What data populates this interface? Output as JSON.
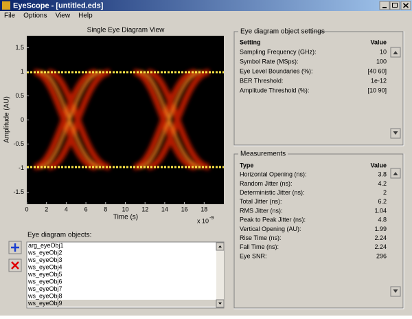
{
  "window": {
    "title": "EyeScope - [untitled.eds]"
  },
  "menu": [
    "File",
    "Options",
    "View",
    "Help"
  ],
  "plot": {
    "title": "Single Eye Diagram View",
    "xlabel": "Time (s)",
    "ylabel": "Amplitude (AU)",
    "x_multiplier": "x 10",
    "x_exponent": "-9",
    "xlim": [
      0,
      20
    ],
    "ylim": [
      -1.75,
      1.75
    ],
    "xticks": [
      0,
      2,
      4,
      6,
      8,
      10,
      12,
      14,
      16,
      18
    ],
    "yticks": [
      -1.5,
      -1,
      -0.5,
      0,
      0.5,
      1,
      1.5
    ]
  },
  "objects": {
    "label": "Eye diagram objects:",
    "items": [
      "arg_eyeObj1",
      "ws_eyeObj2",
      "ws_eyeObj3",
      "ws_eyeObj4",
      "ws_eyeObj5",
      "ws_eyeObj6",
      "ws_eyeObj7",
      "ws_eyeObj8",
      "ws_eyeObj9"
    ]
  },
  "settings": {
    "title": "Eye diagram object settings",
    "headers": [
      "Setting",
      "Value"
    ],
    "rows": [
      [
        "Sampling Frequency (GHz):",
        "10"
      ],
      [
        "Symbol Rate (MSps):",
        "100"
      ],
      [
        "Eye Level Boundaries (%):",
        "[40 60]"
      ],
      [
        "BER Threshold:",
        "1e-12"
      ],
      [
        "Amplitude Threshold (%):",
        "[10 90]"
      ]
    ]
  },
  "measurements": {
    "title": "Measurements",
    "headers": [
      "Type",
      "Value"
    ],
    "rows": [
      [
        "Horizontal Opening (ns):",
        "3.8"
      ],
      [
        "Random Jitter (ns):",
        "4.2"
      ],
      [
        "Deterministic Jitter (ns):",
        "2"
      ],
      [
        "Total Jitter (ns):",
        "6.2"
      ],
      [
        "RMS Jitter (ns):",
        "1.04"
      ],
      [
        "Peak to Peak Jitter (ns):",
        "4.8"
      ],
      [
        "Vertical Opening (AU):",
        "1.99"
      ],
      [
        "Rise Time (ns):",
        "2.24"
      ],
      [
        "Fall Time (ns):",
        "2.24"
      ],
      [
        "Eye SNR:",
        "296"
      ]
    ]
  }
}
